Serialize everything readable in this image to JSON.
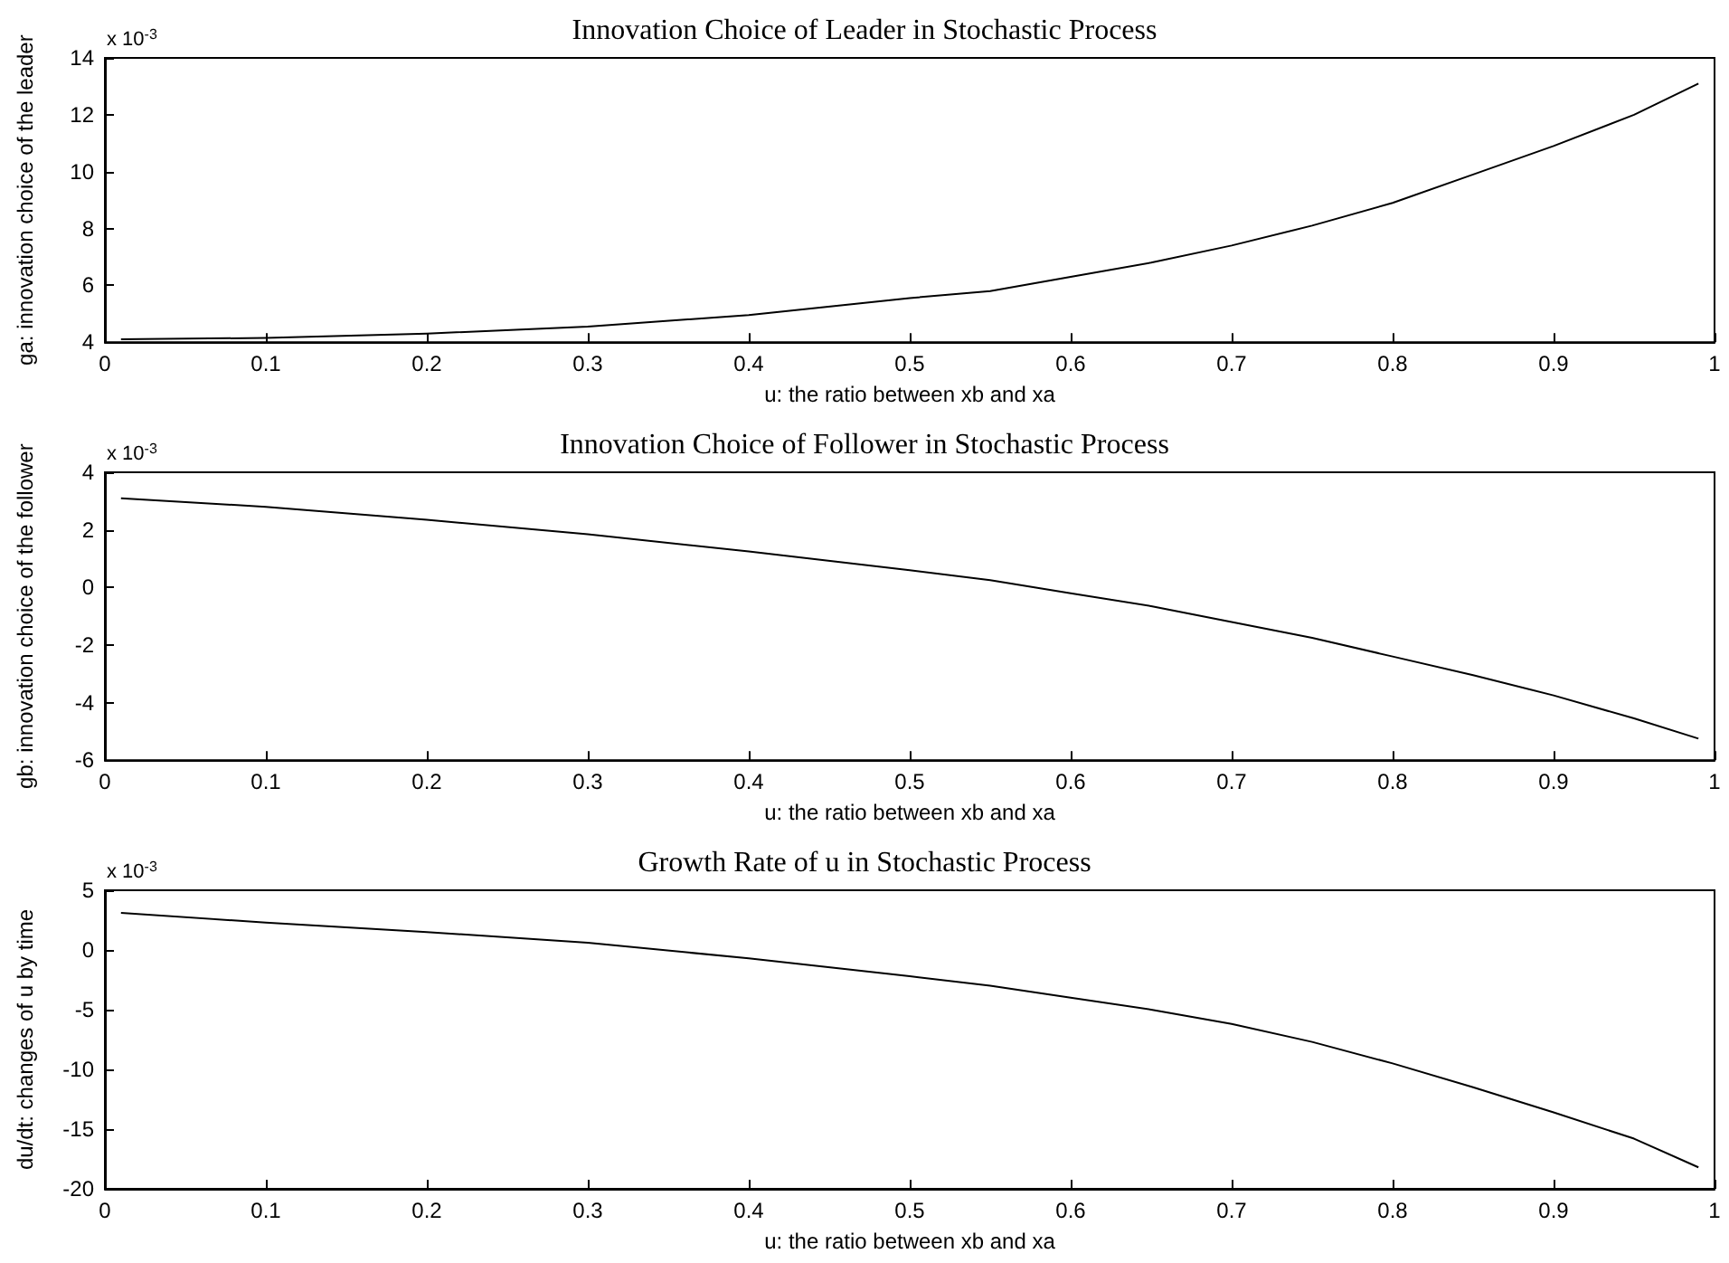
{
  "chart_data": [
    {
      "type": "line",
      "title": "Innovation Choice of Leader in Stochastic Process",
      "xlabel": "u: the ratio between xb and xa",
      "ylabel": "ga: innovation choice of the leader",
      "annotations": [
        "x 10$^{-3}$"
      ],
      "x": [
        0.01,
        0.1,
        0.2,
        0.3,
        0.4,
        0.5,
        0.55,
        0.6,
        0.65,
        0.7,
        0.75,
        0.8,
        0.85,
        0.9,
        0.95,
        0.99
      ],
      "series": [
        {
          "color": "#000000",
          "values": [
            4.1,
            4.15,
            4.3,
            4.55,
            4.95,
            5.55,
            5.8,
            6.3,
            6.8,
            7.4,
            8.1,
            8.9,
            9.9,
            10.9,
            12.0,
            13.1
          ]
        }
      ],
      "xlim": [
        0,
        1
      ],
      "xticks": [
        0,
        0.1,
        0.2,
        0.3,
        0.4,
        0.5,
        0.6,
        0.7,
        0.8,
        0.9,
        1
      ],
      "ylim": [
        4,
        14
      ],
      "yticks": [
        4,
        6,
        8,
        10,
        12,
        14
      ],
      "grid": false,
      "marker": "none",
      "line_style": "solid"
    },
    {
      "type": "line",
      "title": "Innovation Choice of Follower in Stochastic Process",
      "xlabel": "u: the ratio between xb and xa",
      "ylabel": "gb: innovation choice of the follower",
      "annotations": [
        "x 10$^{-3}$"
      ],
      "x": [
        0.01,
        0.1,
        0.2,
        0.3,
        0.4,
        0.5,
        0.55,
        0.6,
        0.65,
        0.7,
        0.75,
        0.8,
        0.85,
        0.9,
        0.95,
        0.99
      ],
      "series": [
        {
          "color": "#000000",
          "values": [
            3.1,
            2.8,
            2.35,
            1.85,
            1.25,
            0.6,
            0.25,
            -0.2,
            -0.65,
            -1.2,
            -1.75,
            -2.4,
            -3.05,
            -3.75,
            -4.55,
            -5.25
          ]
        }
      ],
      "xlim": [
        0,
        1
      ],
      "xticks": [
        0,
        0.1,
        0.2,
        0.3,
        0.4,
        0.5,
        0.6,
        0.7,
        0.8,
        0.9,
        1
      ],
      "ylim": [
        -6,
        4
      ],
      "yticks": [
        -6,
        -4,
        -2,
        0,
        2,
        4
      ],
      "grid": false,
      "marker": "none",
      "line_style": "solid"
    },
    {
      "type": "line",
      "title": "Growth Rate of u in Stochastic Process",
      "xlabel": "u: the ratio between xb and xa",
      "ylabel": "du/dt: changes of u by time",
      "annotations": [
        "x 10$^{-3}$"
      ],
      "x": [
        0.01,
        0.1,
        0.2,
        0.3,
        0.4,
        0.5,
        0.55,
        0.6,
        0.65,
        0.7,
        0.75,
        0.8,
        0.85,
        0.9,
        0.95,
        0.99
      ],
      "series": [
        {
          "color": "#000000",
          "values": [
            3.1,
            2.3,
            1.5,
            0.6,
            -0.7,
            -2.2,
            -3.0,
            -4.0,
            -5.0,
            -6.2,
            -7.7,
            -9.5,
            -11.5,
            -13.6,
            -15.8,
            -18.2
          ]
        }
      ],
      "xlim": [
        0,
        1
      ],
      "xticks": [
        0,
        0.1,
        0.2,
        0.3,
        0.4,
        0.5,
        0.6,
        0.7,
        0.8,
        0.9,
        1
      ],
      "ylim": [
        -20,
        5
      ],
      "yticks": [
        -20,
        -15,
        -10,
        -5,
        0,
        5
      ],
      "grid": false,
      "marker": "none",
      "line_style": "solid"
    }
  ]
}
